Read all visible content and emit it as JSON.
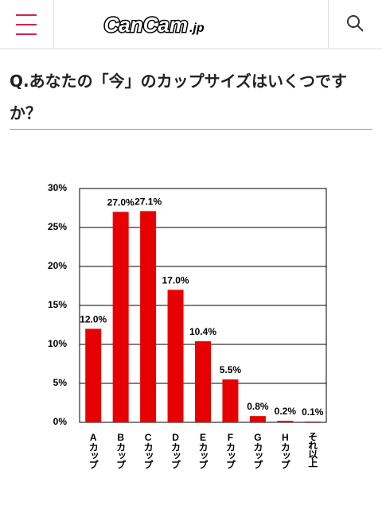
{
  "header": {
    "logo": "CanCam",
    "logo_suffix": ".jp"
  },
  "question": "Q.あなたの「今」のカップサイズはいくつですか？",
  "chart_data": {
    "type": "bar",
    "categories": [
      "Aカップ",
      "Bカップ",
      "Cカップ",
      "Dカップ",
      "Eカップ",
      "Fカップ",
      "Gカップ",
      "Hカップ",
      "それ以上"
    ],
    "values": [
      12.0,
      27.0,
      27.1,
      17.0,
      10.4,
      5.5,
      0.8,
      0.2,
      0.1
    ],
    "value_labels": [
      "12.0%",
      "27.0%",
      "27.1%",
      "17.0%",
      "10.4%",
      "5.5%",
      "0.8%",
      "0.2%",
      "0.1%"
    ],
    "color": "#e60000",
    "ylim": [
      0,
      30
    ],
    "yticks": [
      {
        "value": 0,
        "label": "0%"
      },
      {
        "value": 5,
        "label": "5%"
      },
      {
        "value": 10,
        "label": "10%"
      },
      {
        "value": 15,
        "label": "15%"
      },
      {
        "value": 20,
        "label": "20%"
      },
      {
        "value": 25,
        "label": "25%"
      },
      {
        "value": 30,
        "label": "30%"
      }
    ],
    "grid": true
  }
}
